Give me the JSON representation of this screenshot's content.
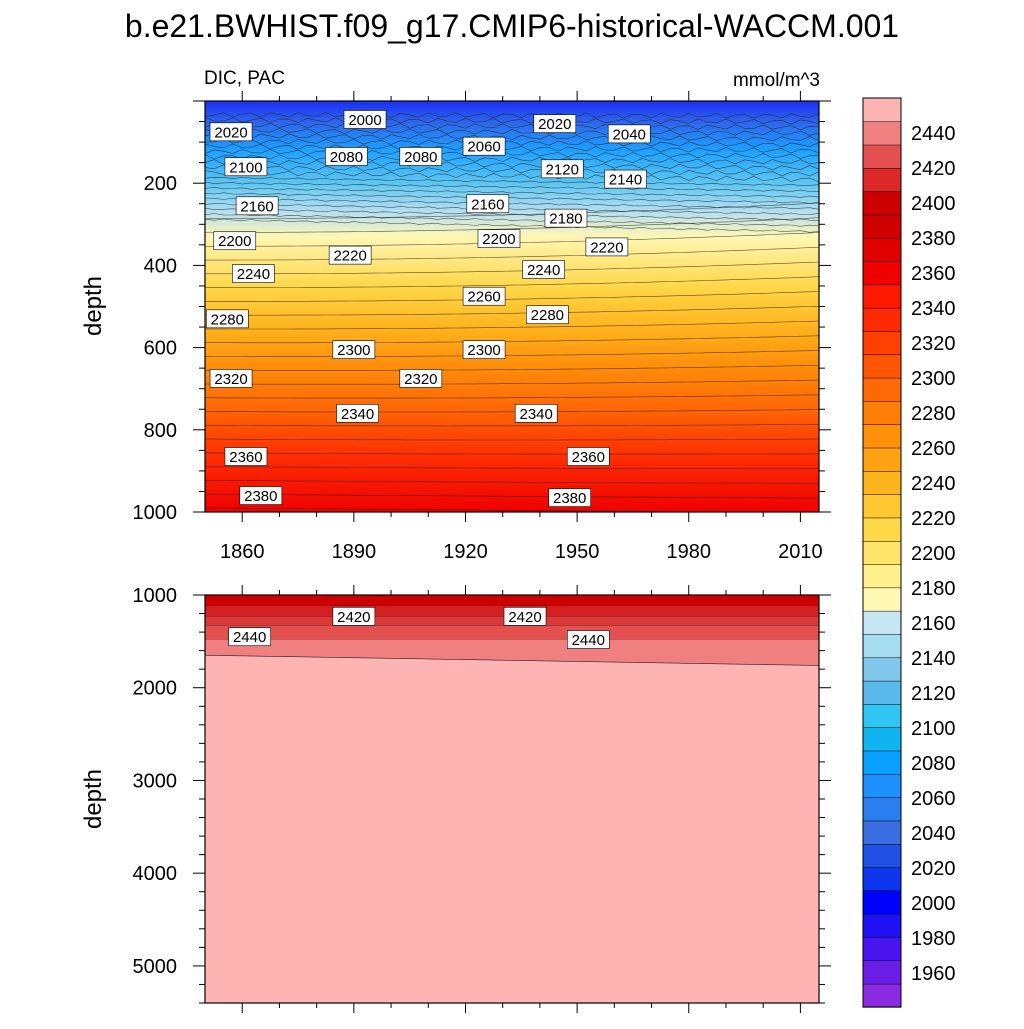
{
  "chart_data": {
    "type": "heatmap",
    "title": "b.e21.BWHIST.f09_g17.CMIP6-historical-WACCM.001",
    "subtitle_left": "DIC, PAC",
    "units": "mmol/m^3",
    "panels": [
      {
        "name": "upper",
        "ylabel": "depth",
        "xlim": [
          1850,
          2015
        ],
        "ylim": [
          0,
          1000
        ],
        "y_reversed": true,
        "x_ticks": [
          1860,
          1890,
          1920,
          1950,
          1980,
          2010
        ],
        "y_ticks": [
          200,
          400,
          600,
          800,
          1000
        ],
        "contour_labels": [
          {
            "text": "2000",
            "x": 1893,
            "y": 45
          },
          {
            "text": "2020",
            "x": 1857,
            "y": 75
          },
          {
            "text": "2020",
            "x": 1944,
            "y": 55
          },
          {
            "text": "2040",
            "x": 1964,
            "y": 80
          },
          {
            "text": "2060",
            "x": 1925,
            "y": 110
          },
          {
            "text": "2080",
            "x": 1888,
            "y": 135
          },
          {
            "text": "2080",
            "x": 1908,
            "y": 135
          },
          {
            "text": "2100",
            "x": 1861,
            "y": 160
          },
          {
            "text": "2120",
            "x": 1946,
            "y": 165
          },
          {
            "text": "2140",
            "x": 1963,
            "y": 190
          },
          {
            "text": "2160",
            "x": 1864,
            "y": 255
          },
          {
            "text": "2160",
            "x": 1926,
            "y": 250
          },
          {
            "text": "2180",
            "x": 1947,
            "y": 285
          },
          {
            "text": "2200",
            "x": 1858,
            "y": 340
          },
          {
            "text": "2200",
            "x": 1929,
            "y": 335
          },
          {
            "text": "2220",
            "x": 1889,
            "y": 375
          },
          {
            "text": "2220",
            "x": 1958,
            "y": 355
          },
          {
            "text": "2240",
            "x": 1863,
            "y": 420
          },
          {
            "text": "2240",
            "x": 1941,
            "y": 410
          },
          {
            "text": "2260",
            "x": 1925,
            "y": 475
          },
          {
            "text": "2280",
            "x": 1856,
            "y": 530
          },
          {
            "text": "2280",
            "x": 1942,
            "y": 520
          },
          {
            "text": "2300",
            "x": 1890,
            "y": 605
          },
          {
            "text": "2300",
            "x": 1925,
            "y": 605
          },
          {
            "text": "2320",
            "x": 1857,
            "y": 675
          },
          {
            "text": "2320",
            "x": 1908,
            "y": 675
          },
          {
            "text": "2340",
            "x": 1891,
            "y": 760
          },
          {
            "text": "2340",
            "x": 1939,
            "y": 760
          },
          {
            "text": "2360",
            "x": 1861,
            "y": 865
          },
          {
            "text": "2360",
            "x": 1953,
            "y": 865
          },
          {
            "text": "2380",
            "x": 1865,
            "y": 960
          },
          {
            "text": "2380",
            "x": 1948,
            "y": 965
          }
        ]
      },
      {
        "name": "lower",
        "ylabel": "depth",
        "xlim": [
          1850,
          2015
        ],
        "ylim": [
          1000,
          5400
        ],
        "y_reversed": true,
        "x_ticks": [
          1860,
          1890,
          1920,
          1950,
          1980,
          2010
        ],
        "y_ticks": [
          1000,
          2000,
          3000,
          4000,
          5000
        ],
        "contour_labels": [
          {
            "text": "2420",
            "x": 1890,
            "y": 1230
          },
          {
            "text": "2420",
            "x": 1936,
            "y": 1230
          },
          {
            "text": "2440",
            "x": 1862,
            "y": 1450
          },
          {
            "text": "2440",
            "x": 1953,
            "y": 1480
          }
        ]
      }
    ],
    "colorbar": {
      "levels": [
        1960,
        1980,
        2000,
        2020,
        2040,
        2060,
        2080,
        2100,
        2120,
        2140,
        2160,
        2180,
        2200,
        2220,
        2240,
        2260,
        2280,
        2300,
        2320,
        2340,
        2360,
        2380,
        2400,
        2420,
        2440
      ],
      "tick_labels": [
        "1960",
        "1980",
        "2000",
        "2020",
        "2040",
        "2060",
        "2080",
        "2100",
        "2120",
        "2140",
        "2160",
        "2180",
        "2200",
        "2220",
        "2240",
        "2260",
        "2280",
        "2300",
        "2320",
        "2340",
        "2360",
        "2380",
        "2400",
        "2420",
        "2440"
      ],
      "colors": [
        "#8a2be2",
        "#6a1ee8",
        "#4a14f0",
        "#2010f5",
        "#0000ff",
        "#1035ee",
        "#2050e6",
        "#3a6ee0",
        "#2a7ef0",
        "#1e90ff",
        "#0aa0ff",
        "#10b4f0",
        "#30c6f2",
        "#5ab8ea",
        "#80c8ec",
        "#a6dcf0",
        "#c6e6f4",
        "#fff7b4",
        "#fff08a",
        "#ffe46a",
        "#ffd84a",
        "#ffc832",
        "#ffb41e",
        "#ffa314",
        "#ff900a",
        "#ff7e08",
        "#ff6a06",
        "#ff5604",
        "#ff4002",
        "#ff2a00",
        "#ff1800",
        "#f00000",
        "#e00000",
        "#d00000",
        "#cc0000",
        "#dc2828",
        "#e45050",
        "#f08080",
        "#ffb4b4"
      ]
    }
  }
}
